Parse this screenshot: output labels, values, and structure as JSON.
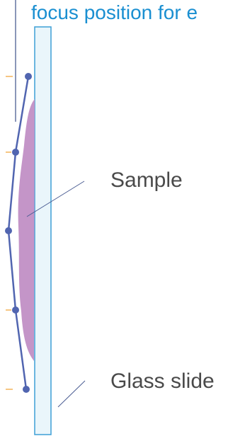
{
  "diagram": {
    "title_text": "focus position for e",
    "labels": {
      "sample": "Sample",
      "glass_slide": "Glass slide"
    },
    "focus_points_count": 5,
    "colors": {
      "title": "#1a8fd1",
      "label_text": "#4a4a4a",
      "focus_line": "#5165b0",
      "sample_fill": "#c495c8",
      "slide_fill": "#eaf6fb",
      "slide_stroke": "#3d9fd6",
      "tick": "#f0a030",
      "leader_line": "#4b5d93"
    }
  }
}
